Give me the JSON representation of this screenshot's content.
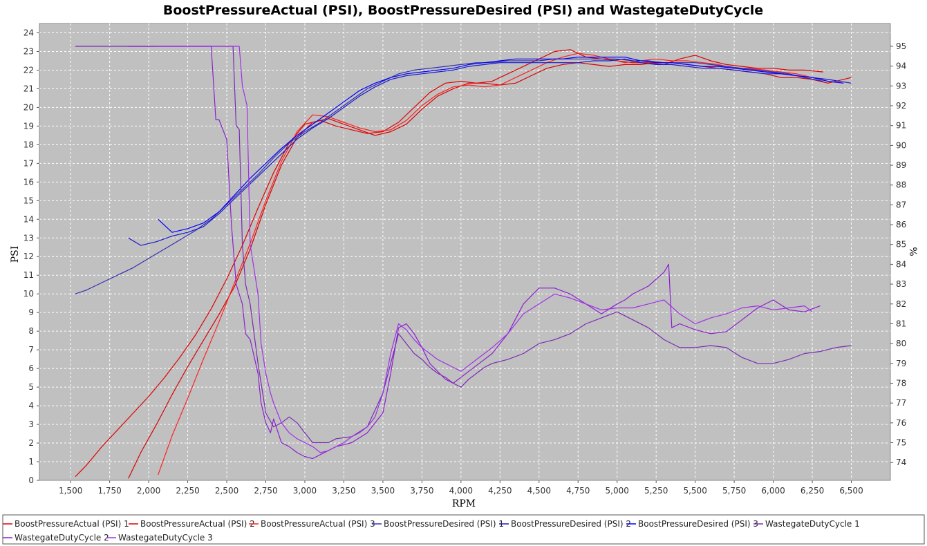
{
  "chart_data": {
    "type": "line",
    "title": "BoostPressureActual (PSI), BoostPressureDesired (PSI) and WastegateDutyCycle",
    "xlabel": "RPM",
    "ylabel": "PSI",
    "y2label": "%",
    "xlim": [
      1300,
      6750
    ],
    "ylim": [
      0,
      24.5
    ],
    "y2lim": [
      73.1,
      96.15
    ],
    "x_ticks": [
      1500,
      1750,
      2000,
      2250,
      2500,
      2750,
      3000,
      3250,
      3500,
      3750,
      4000,
      4250,
      4500,
      4750,
      5000,
      5250,
      5500,
      5750,
      6000,
      6250,
      6500
    ],
    "x_tick_labels": [
      "1,500",
      "1,750",
      "2,000",
      "2,250",
      "2,500",
      "2,750",
      "3,000",
      "3,250",
      "3,500",
      "3,750",
      "4,000",
      "4,250",
      "4,500",
      "4,750",
      "5,000",
      "5,250",
      "5,500",
      "5,750",
      "6,000",
      "6,250",
      "6,500"
    ],
    "y_ticks": [
      0,
      1,
      2,
      3,
      4,
      5,
      6,
      7,
      8,
      9,
      10,
      11,
      12,
      13,
      14,
      15,
      16,
      17,
      18,
      19,
      20,
      21,
      22,
      23,
      24
    ],
    "y2_ticks": [
      74,
      75,
      76,
      77,
      78,
      79,
      80,
      81,
      82,
      83,
      84,
      85,
      86,
      87,
      88,
      89,
      90,
      91,
      92,
      93,
      94,
      95
    ],
    "grid": true,
    "legend_position": "bottom",
    "series": [
      {
        "name": "BoostPressureActual (PSI) 1",
        "axis": "left",
        "color": "#e00000",
        "x": [
          1530,
          1600,
          1700,
          1800,
          1900,
          2000,
          2100,
          2200,
          2300,
          2400,
          2500,
          2600,
          2700,
          2800,
          2900,
          3000,
          3100,
          3200,
          3300,
          3400,
          3500,
          3600,
          3700,
          3800,
          3900,
          4000,
          4100,
          4200,
          4300,
          4400,
          4500,
          4600,
          4700,
          4800,
          4900,
          5000,
          5100,
          5200,
          5300,
          5400,
          5500,
          5600,
          5700,
          5800,
          5900,
          6000,
          6100,
          6200,
          6320
        ],
        "y": [
          0.2,
          0.8,
          1.8,
          2.7,
          3.6,
          4.5,
          5.5,
          6.6,
          7.8,
          9.2,
          10.8,
          12.6,
          14.6,
          16.5,
          18.1,
          19.1,
          19.3,
          19.0,
          18.8,
          18.6,
          18.7,
          19.2,
          20.0,
          20.8,
          21.3,
          21.4,
          21.3,
          21.4,
          21.8,
          22.2,
          22.6,
          23.0,
          23.1,
          22.7,
          22.6,
          22.5,
          22.4,
          22.4,
          22.3,
          22.6,
          22.8,
          22.5,
          22.3,
          22.2,
          22.1,
          22.1,
          22.0,
          22.0,
          21.9
        ]
      },
      {
        "name": "BoostPressureActual (PSI) 2",
        "axis": "left",
        "color": "#d80000",
        "x": [
          1870,
          1950,
          2050,
          2150,
          2250,
          2350,
          2450,
          2550,
          2650,
          2750,
          2850,
          2950,
          3050,
          3150,
          3250,
          3350,
          3450,
          3550,
          3650,
          3750,
          3850,
          3950,
          4050,
          4150,
          4250,
          4350,
          4450,
          4550,
          4650,
          4750,
          4850,
          4950,
          5050,
          5150,
          5250,
          5350,
          5450,
          5550,
          5650,
          5750,
          5850,
          5950,
          6050,
          6150,
          6250,
          6350,
          6500
        ],
        "y": [
          0.1,
          1.5,
          3.0,
          4.6,
          6.1,
          7.5,
          8.9,
          10.4,
          12.4,
          14.8,
          16.9,
          18.4,
          19.2,
          19.4,
          19.1,
          18.8,
          18.5,
          18.7,
          19.1,
          19.9,
          20.6,
          21.0,
          21.3,
          21.3,
          21.2,
          21.3,
          21.7,
          22.1,
          22.3,
          22.4,
          22.3,
          22.2,
          22.3,
          22.3,
          22.4,
          22.4,
          22.3,
          22.2,
          22.1,
          22.0,
          21.9,
          21.8,
          21.6,
          21.6,
          21.5,
          21.3,
          21.6
        ]
      },
      {
        "name": "BoostPressureActual (PSI) 3",
        "axis": "left",
        "color": "#ff2020",
        "x": [
          2060,
          2150,
          2250,
          2350,
          2450,
          2550,
          2650,
          2750,
          2850,
          2950,
          3050,
          3150,
          3250,
          3350,
          3450,
          3550,
          3650,
          3750,
          3850,
          3950,
          4050,
          4150,
          4250,
          4350,
          4450,
          4550,
          4650,
          4750,
          4850,
          4950,
          5050,
          5150,
          5250,
          5350,
          5450,
          5550,
          5650,
          5750,
          5850,
          5950,
          6050,
          6150,
          6250,
          6350,
          6450
        ],
        "y": [
          0.3,
          2.4,
          4.4,
          6.5,
          8.5,
          10.6,
          12.7,
          15.0,
          17.1,
          18.7,
          19.6,
          19.5,
          19.2,
          18.9,
          18.7,
          18.8,
          19.3,
          20.1,
          20.7,
          21.1,
          21.2,
          21.1,
          21.2,
          21.6,
          22.0,
          22.4,
          22.7,
          22.9,
          22.8,
          22.6,
          22.4,
          22.5,
          22.6,
          22.5,
          22.5,
          22.4,
          22.3,
          22.1,
          22.1,
          22.0,
          21.9,
          21.8,
          21.6,
          21.4,
          21.3
        ]
      },
      {
        "name": "BoostPressureDesired (PSI) 1",
        "axis": "left",
        "color": "#3030b0",
        "x": [
          1530,
          1600,
          1700,
          1800,
          1900,
          2000,
          2100,
          2200,
          2300,
          2400,
          2500,
          2600,
          2700,
          2800,
          2900,
          3000,
          3100,
          3200,
          3300,
          3400,
          3500,
          3600,
          3700,
          3800,
          3900,
          4000,
          4100,
          4200,
          4300,
          4400,
          4500,
          4600,
          4700,
          4800,
          4900,
          5000,
          5100,
          5200,
          5300,
          5400,
          5500,
          5600,
          5700,
          5800,
          5900,
          6000,
          6100,
          6200,
          6320
        ],
        "y": [
          10.0,
          10.2,
          10.6,
          11.0,
          11.4,
          11.9,
          12.4,
          12.9,
          13.4,
          14.0,
          14.8,
          15.6,
          16.4,
          17.3,
          18.1,
          18.7,
          19.2,
          19.8,
          20.4,
          21.0,
          21.4,
          21.8,
          22.0,
          22.1,
          22.2,
          22.3,
          22.4,
          22.4,
          22.5,
          22.5,
          22.5,
          22.6,
          22.6,
          22.6,
          22.6,
          22.6,
          22.5,
          22.5,
          22.4,
          22.4,
          22.4,
          22.3,
          22.2,
          22.1,
          22.0,
          21.9,
          21.8,
          21.6,
          21.4
        ]
      },
      {
        "name": "BoostPressureDesired (PSI) 2",
        "axis": "left",
        "color": "#1a1acc",
        "x": [
          1870,
          1950,
          2050,
          2150,
          2250,
          2350,
          2450,
          2550,
          2650,
          2750,
          2850,
          2950,
          3050,
          3150,
          3250,
          3350,
          3450,
          3550,
          3650,
          3750,
          3850,
          3950,
          4050,
          4150,
          4250,
          4350,
          4450,
          4550,
          4650,
          4750,
          4850,
          4950,
          5050,
          5150,
          5250,
          5350,
          5450,
          5550,
          5650,
          5750,
          5850,
          5950,
          6050,
          6150,
          6250,
          6350,
          6500
        ],
        "y": [
          13.0,
          12.6,
          12.8,
          13.1,
          13.3,
          13.6,
          14.3,
          15.1,
          15.9,
          16.7,
          17.5,
          18.3,
          18.9,
          19.4,
          20.0,
          20.6,
          21.1,
          21.5,
          21.7,
          21.8,
          21.9,
          22.0,
          22.2,
          22.3,
          22.4,
          22.4,
          22.4,
          22.4,
          22.4,
          22.4,
          22.5,
          22.5,
          22.6,
          22.4,
          22.3,
          22.3,
          22.2,
          22.1,
          22.1,
          22.0,
          21.9,
          21.8,
          21.8,
          21.7,
          21.6,
          21.5,
          21.3
        ]
      },
      {
        "name": "BoostPressureDesired (PSI) 3",
        "axis": "left",
        "color": "#0000ff",
        "x": [
          2060,
          2150,
          2250,
          2350,
          2450,
          2550,
          2650,
          2750,
          2850,
          2950,
          3050,
          3150,
          3250,
          3350,
          3450,
          3550,
          3650,
          3750,
          3850,
          3950,
          4050,
          4150,
          4250,
          4350,
          4450,
          4550,
          4650,
          4750,
          4850,
          4950,
          5050,
          5150,
          5250,
          5350,
          5450,
          5550,
          5650,
          5750,
          5850,
          5950,
          6050,
          6150,
          6250,
          6350,
          6450
        ],
        "y": [
          14.0,
          13.3,
          13.5,
          13.8,
          14.4,
          15.3,
          16.2,
          17.0,
          17.8,
          18.5,
          19.1,
          19.7,
          20.3,
          20.9,
          21.3,
          21.6,
          21.8,
          21.9,
          22.0,
          22.1,
          22.3,
          22.4,
          22.5,
          22.6,
          22.6,
          22.6,
          22.6,
          22.7,
          22.7,
          22.7,
          22.7,
          22.5,
          22.4,
          22.4,
          22.3,
          22.2,
          22.2,
          22.1,
          22.0,
          21.9,
          21.8,
          21.7,
          21.6,
          21.4,
          21.3
        ]
      },
      {
        "name": "WastegateDutyCycle 1",
        "axis": "right",
        "color": "#7a2ab5",
        "x": [
          1530,
          1700,
          1900,
          2100,
          2300,
          2450,
          2500,
          2540,
          2560,
          2580,
          2600,
          2620,
          2650,
          2700,
          2750,
          2800,
          2850,
          2900,
          2950,
          3000,
          3050,
          3100,
          3150,
          3200,
          3300,
          3400,
          3500,
          3550,
          3600,
          3650,
          3700,
          3750,
          3800,
          3850,
          3900,
          3950,
          4000,
          4050,
          4100,
          4150,
          4200,
          4300,
          4400,
          4500,
          4600,
          4700,
          4800,
          4900,
          5000,
          5100,
          5200,
          5300,
          5400,
          5500,
          5600,
          5700,
          5800,
          5900,
          6000,
          6100,
          6200,
          6300,
          6400,
          6500
        ],
        "y": [
          95,
          95,
          95,
          95,
          95,
          95,
          95,
          95,
          91.0,
          90.8,
          85.0,
          83.0,
          82.0,
          79.0,
          76.5,
          75.8,
          76.0,
          76.3,
          76.0,
          75.5,
          75.0,
          75.0,
          75.0,
          75.2,
          75.3,
          75.8,
          77.5,
          79.0,
          80.5,
          80.0,
          79.5,
          79.2,
          78.8,
          78.5,
          78.3,
          78.0,
          77.8,
          78.2,
          78.5,
          78.8,
          79.0,
          79.2,
          79.5,
          80.0,
          80.2,
          80.5,
          81.0,
          81.3,
          81.6,
          81.2,
          80.8,
          80.2,
          79.8,
          79.8,
          79.9,
          79.8,
          79.3,
          79.0,
          79.0,
          79.2,
          79.5,
          79.6,
          79.8,
          79.9
        ]
      },
      {
        "name": "WastegateDutyCycle 2",
        "axis": "right",
        "color": "#8b1fd0",
        "x": [
          1870,
          2000,
          2200,
          2400,
          2430,
          2450,
          2500,
          2530,
          2560,
          2600,
          2620,
          2650,
          2700,
          2720,
          2750,
          2780,
          2800,
          2850,
          2900,
          2950,
          3000,
          3050,
          3100,
          3200,
          3300,
          3400,
          3500,
          3550,
          3600,
          3650,
          3700,
          3750,
          3800,
          3850,
          3900,
          3950,
          4000,
          4050,
          4100,
          4200,
          4300,
          4400,
          4500,
          4600,
          4700,
          4800,
          4900,
          5000,
          5050,
          5100,
          5200,
          5300,
          5330,
          5350,
          5400,
          5500,
          5600,
          5700,
          5800,
          5900,
          6000,
          6100,
          6200,
          6300
        ],
        "y": [
          95,
          95,
          95,
          95,
          91.3,
          91.3,
          90.3,
          86.0,
          83.0,
          82.0,
          80.5,
          80.2,
          78.5,
          77.0,
          76.0,
          75.5,
          76.2,
          75.0,
          74.8,
          74.5,
          74.3,
          74.2,
          74.4,
          74.8,
          75.0,
          75.5,
          76.5,
          78.5,
          80.8,
          81.0,
          80.5,
          79.8,
          79.0,
          78.6,
          78.2,
          78.0,
          78.3,
          78.6,
          78.9,
          79.5,
          80.5,
          82.0,
          82.8,
          82.8,
          82.5,
          82.0,
          81.5,
          82.0,
          82.2,
          82.5,
          82.9,
          83.6,
          84.0,
          80.8,
          81.0,
          80.7,
          80.5,
          80.6,
          81.2,
          81.8,
          82.2,
          81.7,
          81.6,
          81.9
        ]
      },
      {
        "name": "WastegateDutyCycle 3",
        "axis": "right",
        "color": "#a030e8",
        "x": [
          2060,
          2200,
          2400,
          2500,
          2550,
          2580,
          2600,
          2630,
          2650,
          2700,
          2720,
          2750,
          2780,
          2800,
          2850,
          2900,
          2950,
          3000,
          3050,
          3100,
          3150,
          3200,
          3250,
          3300,
          3350,
          3400,
          3450,
          3500,
          3550,
          3600,
          3650,
          3700,
          3750,
          3800,
          3850,
          3900,
          3950,
          4000,
          4050,
          4100,
          4150,
          4200,
          4300,
          4400,
          4500,
          4600,
          4700,
          4800,
          4900,
          5000,
          5100,
          5200,
          5300,
          5400,
          5500,
          5600,
          5700,
          5800,
          5900,
          6000,
          6100,
          6200,
          6250
        ],
        "y": [
          95,
          95,
          95,
          95,
          95,
          95,
          93.0,
          92.0,
          85.0,
          82.5,
          80.0,
          78.5,
          77.5,
          77.0,
          76.0,
          75.5,
          75.2,
          75.0,
          74.8,
          74.5,
          74.6,
          74.8,
          75.0,
          75.3,
          75.5,
          75.8,
          76.3,
          77.5,
          79.5,
          81.0,
          80.7,
          80.2,
          79.8,
          79.5,
          79.2,
          79.0,
          78.8,
          78.6,
          78.9,
          79.2,
          79.5,
          79.8,
          80.5,
          81.5,
          82.0,
          82.5,
          82.3,
          82.0,
          81.7,
          81.8,
          81.8,
          82.0,
          82.2,
          81.5,
          81.0,
          81.3,
          81.5,
          81.8,
          81.9,
          81.7,
          81.8,
          81.9,
          81.6
        ]
      }
    ]
  }
}
